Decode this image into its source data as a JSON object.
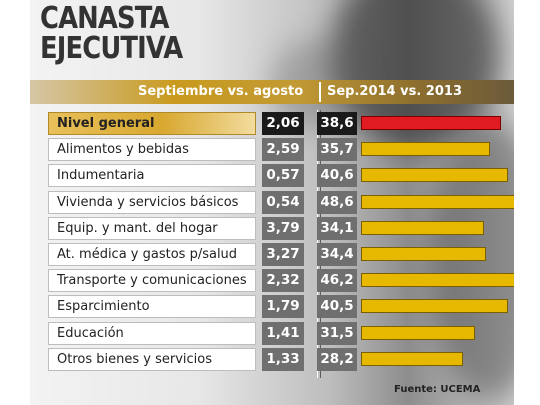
{
  "colors": {
    "highlight_bar": "#e11b22",
    "bar": "#e6b800",
    "highlight_label": "#d8a830",
    "value_box": "#6f6f6f",
    "highlight_value_box": "#1a1a1a"
  },
  "chart_data": {
    "type": "bar",
    "title_lines": [
      "CANASTA",
      "EJECUTIVA"
    ],
    "column_headers": {
      "month": "Septiembre vs. agosto",
      "year": "Sep.2014 vs. 2013"
    },
    "categories": [
      "Nivel general",
      "Alimentos y bebidas",
      "Indumentaria",
      "Vivienda y servicios básicos",
      "Equip. y mant. del hogar",
      "At. médica y gastos p/salud",
      "Transporte y comunicaciones",
      "Esparcimiento",
      "Educación",
      "Otros bienes y servicios"
    ],
    "month_values": [
      "2,06",
      "2,59",
      "0,57",
      "0,54",
      "3,79",
      "3,27",
      "2,32",
      "1,79",
      "1,41",
      "1,33"
    ],
    "year_values": [
      "38,6",
      "35,7",
      "40,6",
      "48,6",
      "34,1",
      "34,4",
      "46,2",
      "40,5",
      "31,5",
      "28,2"
    ],
    "series": [
      {
        "values": [
          38.6,
          35.7,
          40.6,
          48.6,
          34.1,
          34.4,
          46.2,
          40.5,
          31.5,
          28.2
        ]
      }
    ],
    "highlighted_category": "Nivel general",
    "source": "Fuente: UCEMA"
  }
}
